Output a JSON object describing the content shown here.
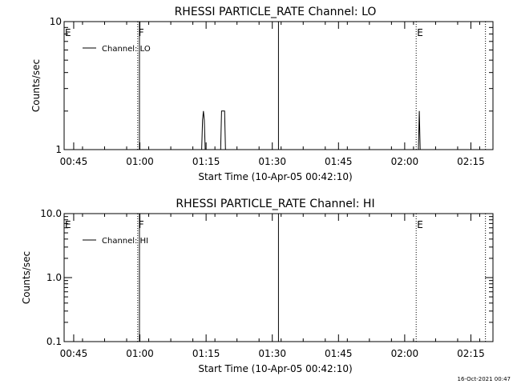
{
  "footer": {
    "timestamp": "16-Oct-2021 00:47"
  },
  "chart_data": [
    {
      "type": "line",
      "title": "RHESSI PARTICLE_RATE Channel: LO",
      "xlabel": "Start Time (10-Apr-05 00:42:10)",
      "ylabel": "Counts/sec",
      "y_scale": "log",
      "ylim": [
        1,
        10
      ],
      "y_ticks": [
        {
          "value": 1,
          "label": "1"
        },
        {
          "value": 10,
          "label": "10"
        }
      ],
      "x_range_minutes": [
        0.83,
        98.0
      ],
      "x_ticks": [
        {
          "value": 3,
          "label": "00:45"
        },
        {
          "value": 18,
          "label": "01:00"
        },
        {
          "value": 33,
          "label": "01:15"
        },
        {
          "value": 48,
          "label": "01:30"
        },
        {
          "value": 63,
          "label": "01:45"
        },
        {
          "value": 78,
          "label": "02:00"
        },
        {
          "value": 93,
          "label": "02:15"
        }
      ],
      "legend": {
        "position": "top-left",
        "entries": [
          "Channel: LO"
        ]
      },
      "markers": [
        {
          "label": "E",
          "x": 0.83,
          "style": "none"
        },
        {
          "label": "F",
          "x": 17.5,
          "style": "dotted"
        },
        {
          "label": "",
          "x": 17.9,
          "style": "solid"
        },
        {
          "label": "",
          "x": 49.4,
          "style": "solid"
        },
        {
          "label": "E",
          "x": 80.6,
          "style": "dotted"
        },
        {
          "label": "",
          "x": 96.3,
          "style": "dotted"
        }
      ],
      "series": [
        {
          "name": "Channel: LO",
          "x": [
            32.0,
            32.2,
            32.4,
            32.6,
            32.8,
            36.3,
            36.5,
            36.7,
            37.2,
            37.4,
            81.1,
            81.3,
            81.5
          ],
          "y": [
            1,
            1.7,
            2.0,
            1.7,
            1,
            1,
            2.0,
            2.0,
            2.0,
            1,
            1,
            2.0,
            1
          ]
        }
      ]
    },
    {
      "type": "line",
      "title": "RHESSI PARTICLE_RATE Channel: HI",
      "xlabel": "Start Time (10-Apr-05 00:42:10)",
      "ylabel": "Counts/sec",
      "y_scale": "log",
      "ylim": [
        0.1,
        10
      ],
      "y_ticks": [
        {
          "value": 0.1,
          "label": "0.1"
        },
        {
          "value": 1,
          "label": "1.0"
        },
        {
          "value": 10,
          "label": "10.0"
        }
      ],
      "x_range_minutes": [
        0.83,
        98.0
      ],
      "x_ticks": [
        {
          "value": 3,
          "label": "00:45"
        },
        {
          "value": 18,
          "label": "01:00"
        },
        {
          "value": 33,
          "label": "01:15"
        },
        {
          "value": 48,
          "label": "01:30"
        },
        {
          "value": 63,
          "label": "01:45"
        },
        {
          "value": 78,
          "label": "02:00"
        },
        {
          "value": 93,
          "label": "02:15"
        }
      ],
      "legend": {
        "position": "top-left",
        "entries": [
          "Channel: HI"
        ]
      },
      "markers": [
        {
          "label": "E",
          "x": 0.83,
          "style": "none"
        },
        {
          "label": "F",
          "x": 17.5,
          "style": "dotted"
        },
        {
          "label": "",
          "x": 17.9,
          "style": "solid"
        },
        {
          "label": "",
          "x": 49.4,
          "style": "solid"
        },
        {
          "label": "E",
          "x": 80.6,
          "style": "dotted"
        },
        {
          "label": "",
          "x": 96.3,
          "style": "dotted"
        }
      ],
      "series": [
        {
          "name": "Channel: HI",
          "x": [],
          "y": []
        }
      ]
    }
  ]
}
